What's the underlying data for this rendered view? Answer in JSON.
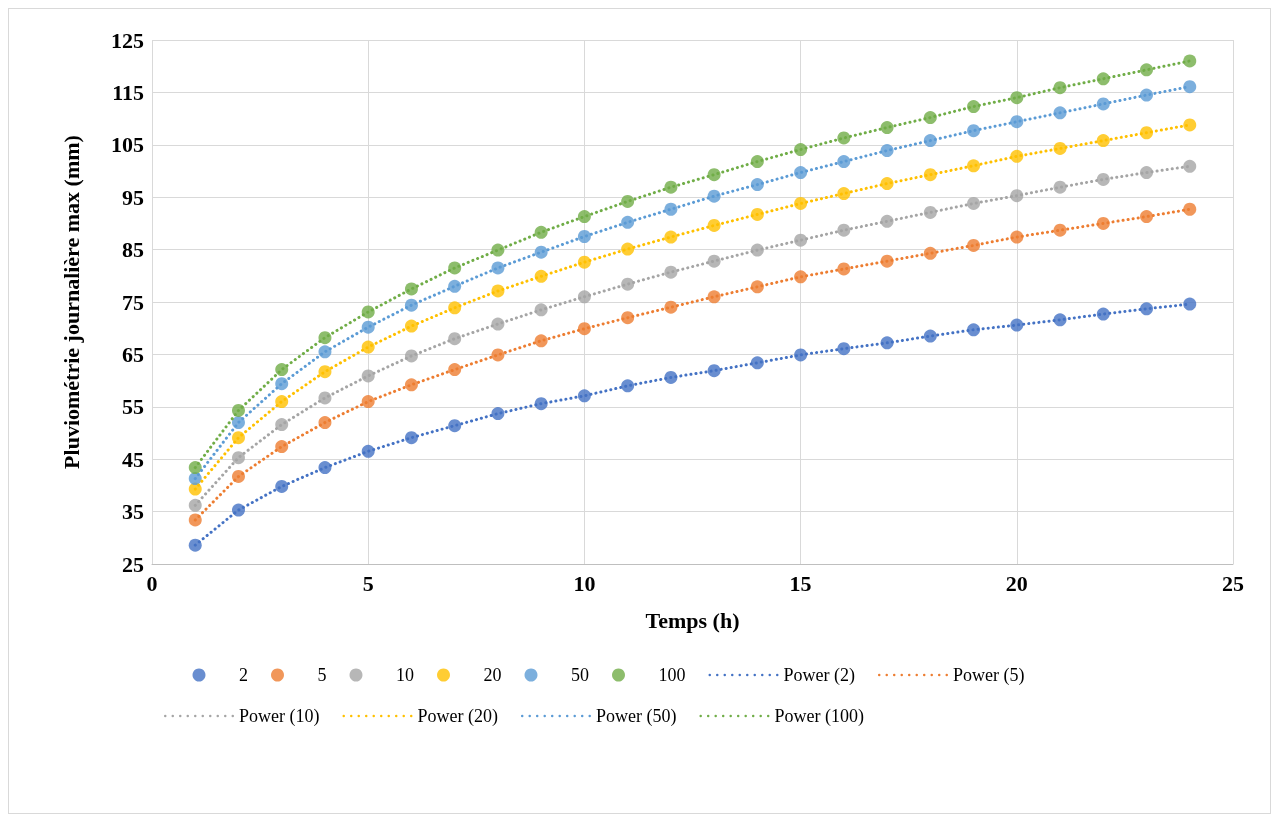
{
  "chart_data": {
    "type": "scatter",
    "xlabel": "Temps (h)",
    "ylabel": "Pluviométrie journalière max (mm)",
    "x": [
      1,
      2,
      3,
      4,
      5,
      6,
      7,
      8,
      9,
      10,
      11,
      12,
      13,
      14,
      15,
      16,
      17,
      18,
      19,
      20,
      21,
      22,
      23,
      24
    ],
    "xlim": [
      0,
      25
    ],
    "xticks": [
      0,
      5,
      10,
      15,
      20,
      25
    ],
    "ylim": [
      25,
      125
    ],
    "yticks": [
      25,
      35,
      45,
      55,
      65,
      75,
      85,
      95,
      105,
      115,
      125
    ],
    "grid": true,
    "legend": "bottom",
    "series": [
      {
        "name": "2",
        "marker": "circle",
        "color": "#4472c4",
        "values": [
          28.6,
          35.3,
          39.8,
          43.4,
          46.5,
          49.1,
          51.4,
          53.7,
          55.6,
          57.1,
          59.0,
          60.6,
          61.9,
          63.4,
          64.9,
          66.1,
          67.2,
          68.5,
          69.7,
          70.6,
          71.6,
          72.7,
          73.7,
          74.6
        ]
      },
      {
        "name": "5",
        "marker": "circle",
        "color": "#ed7d31",
        "values": [
          33.4,
          41.7,
          47.4,
          52.0,
          56.0,
          59.2,
          62.1,
          64.9,
          67.6,
          69.9,
          72.0,
          74.0,
          76.0,
          77.9,
          79.8,
          81.3,
          82.8,
          84.3,
          85.8,
          87.4,
          88.7,
          90.0,
          91.3,
          92.7
        ]
      },
      {
        "name": "10",
        "marker": "circle",
        "color": "#a5a5a5",
        "values": [
          36.2,
          45.3,
          51.6,
          56.7,
          60.9,
          64.7,
          68.0,
          70.8,
          73.5,
          76.0,
          78.4,
          80.7,
          82.8,
          84.9,
          86.8,
          88.7,
          90.4,
          92.1,
          93.8,
          95.3,
          96.9,
          98.4,
          99.7,
          100.9
        ]
      },
      {
        "name": "20",
        "marker": "circle",
        "color": "#ffc000",
        "values": [
          39.3,
          49.1,
          56.0,
          61.7,
          66.4,
          70.4,
          73.9,
          77.1,
          79.9,
          82.6,
          85.1,
          87.4,
          89.6,
          91.7,
          93.8,
          95.7,
          97.6,
          99.3,
          101.0,
          102.8,
          104.3,
          105.8,
          107.3,
          108.8
        ]
      },
      {
        "name": "50",
        "marker": "circle",
        "color": "#5b9bd5",
        "values": [
          41.3,
          52.0,
          59.4,
          65.5,
          70.2,
          74.4,
          78.0,
          81.5,
          84.5,
          87.5,
          90.2,
          92.7,
          95.2,
          97.4,
          99.7,
          101.8,
          103.9,
          105.8,
          107.7,
          109.4,
          111.1,
          112.8,
          114.5,
          116.1
        ]
      },
      {
        "name": "100",
        "marker": "circle",
        "color": "#70ad47",
        "values": [
          43.4,
          54.3,
          62.1,
          68.2,
          73.1,
          77.5,
          81.5,
          84.9,
          88.3,
          91.3,
          94.2,
          96.9,
          99.3,
          101.8,
          104.1,
          106.3,
          108.3,
          110.2,
          112.3,
          114.0,
          115.9,
          117.6,
          119.3,
          121.0
        ]
      },
      {
        "name": "Power (2)",
        "type": "line",
        "marker": "none",
        "line_style": "dotted",
        "color": "#4472c4",
        "values": [
          28.6,
          35.3,
          39.8,
          43.4,
          46.5,
          49.1,
          51.4,
          53.7,
          55.6,
          57.1,
          59.0,
          60.6,
          61.9,
          63.4,
          64.9,
          66.1,
          67.2,
          68.5,
          69.7,
          70.6,
          71.6,
          72.7,
          73.7,
          74.6
        ]
      },
      {
        "name": "Power (5)",
        "type": "line",
        "marker": "none",
        "line_style": "dotted",
        "color": "#ed7d31",
        "values": [
          33.4,
          41.7,
          47.4,
          52.0,
          56.0,
          59.2,
          62.1,
          64.9,
          67.6,
          69.9,
          72.0,
          74.0,
          76.0,
          77.9,
          79.8,
          81.3,
          82.8,
          84.3,
          85.8,
          87.4,
          88.7,
          90.0,
          91.3,
          92.7
        ]
      },
      {
        "name": "Power (10)",
        "type": "line",
        "marker": "none",
        "line_style": "dotted",
        "color": "#a5a5a5",
        "values": [
          36.2,
          45.3,
          51.6,
          56.7,
          60.9,
          64.7,
          68.0,
          70.8,
          73.5,
          76.0,
          78.4,
          80.7,
          82.8,
          84.9,
          86.8,
          88.7,
          90.4,
          92.1,
          93.8,
          95.3,
          96.9,
          98.4,
          99.7,
          100.9
        ]
      },
      {
        "name": "Power (20)",
        "type": "line",
        "marker": "none",
        "line_style": "dotted",
        "color": "#ffc000",
        "values": [
          39.3,
          49.1,
          56.0,
          61.7,
          66.4,
          70.4,
          73.9,
          77.1,
          79.9,
          82.6,
          85.1,
          87.4,
          89.6,
          91.7,
          93.8,
          95.7,
          97.6,
          99.3,
          101.0,
          102.8,
          104.3,
          105.8,
          107.3,
          108.8
        ]
      },
      {
        "name": "Power (50)",
        "type": "line",
        "marker": "none",
        "line_style": "dotted",
        "color": "#5b9bd5",
        "values": [
          41.3,
          52.0,
          59.4,
          65.5,
          70.2,
          74.4,
          78.0,
          81.5,
          84.5,
          87.5,
          90.2,
          92.7,
          95.2,
          97.4,
          99.7,
          101.8,
          103.9,
          105.8,
          107.7,
          109.4,
          111.1,
          112.8,
          114.5,
          116.1
        ]
      },
      {
        "name": "Power (100)",
        "type": "line",
        "marker": "none",
        "line_style": "dotted",
        "color": "#70ad47",
        "values": [
          43.4,
          54.3,
          62.1,
          68.2,
          73.1,
          77.5,
          81.5,
          84.9,
          88.3,
          91.3,
          94.2,
          96.9,
          99.3,
          101.8,
          104.1,
          106.3,
          108.3,
          110.2,
          112.3,
          114.0,
          115.9,
          117.6,
          119.3,
          121.0
        ]
      }
    ]
  }
}
